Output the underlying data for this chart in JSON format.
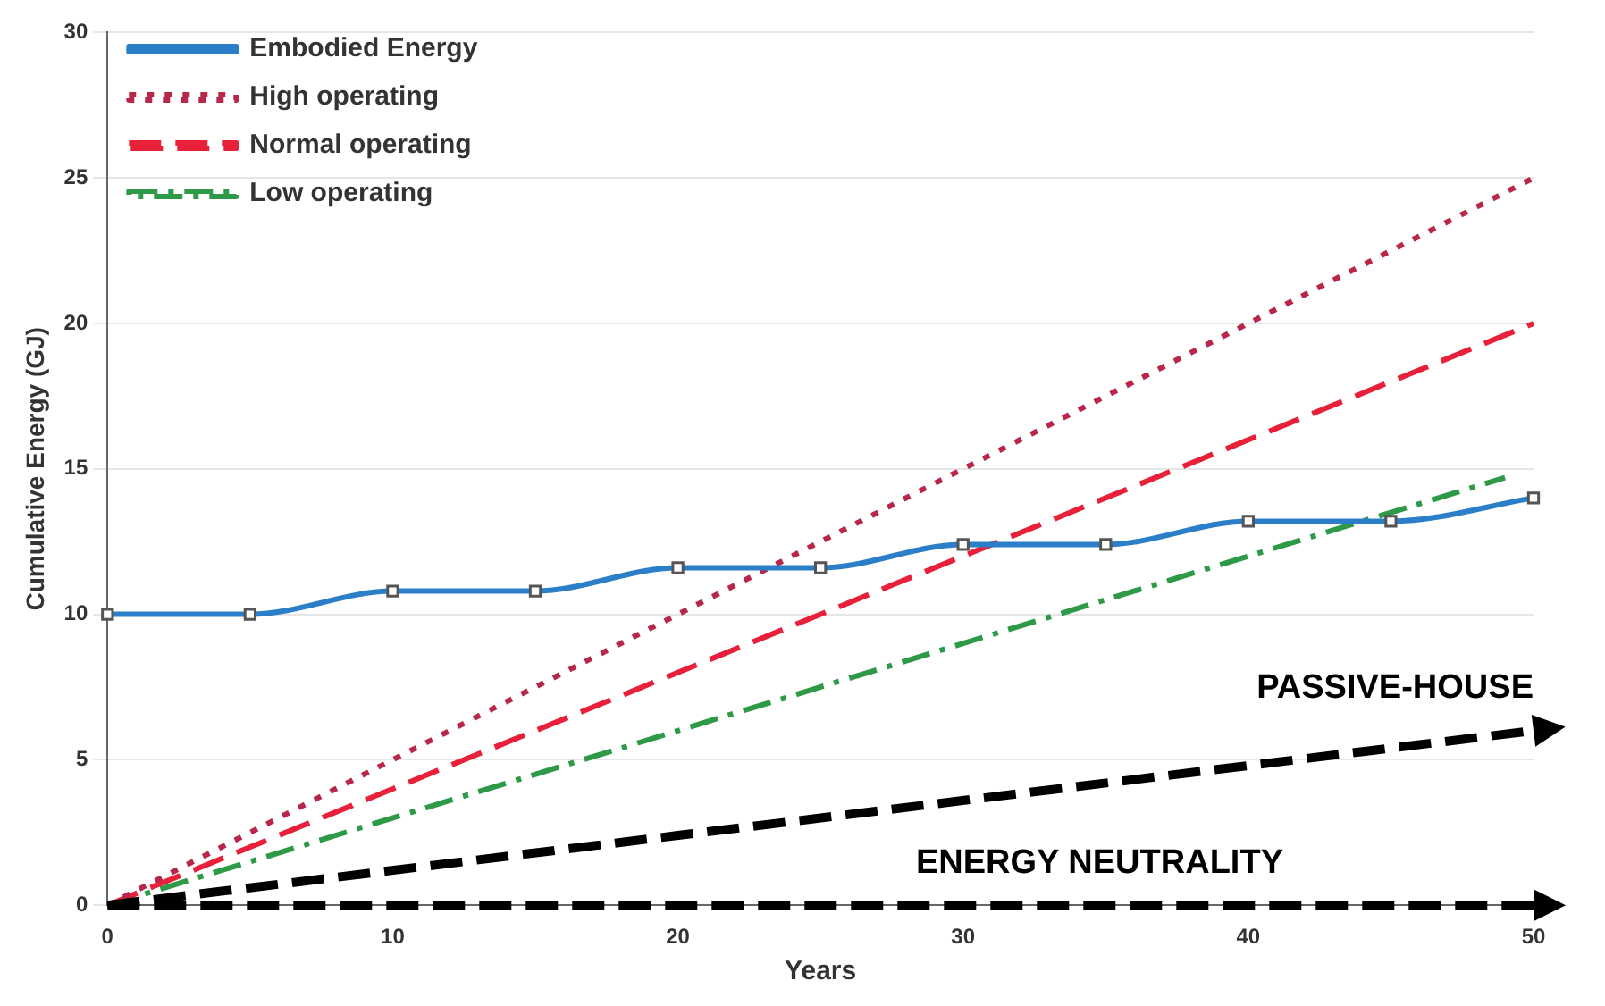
{
  "chart_data": {
    "type": "line",
    "xlabel": "Years",
    "ylabel": "Cumulative Energy (GJ)",
    "xlim": [
      0,
      50
    ],
    "ylim": [
      0,
      30
    ],
    "xticks": [
      0,
      10,
      20,
      30,
      40,
      50
    ],
    "yticks": [
      0,
      5,
      10,
      15,
      20,
      25,
      30
    ],
    "grid": "y",
    "legend": "top left",
    "series": [
      {
        "name": "Embodied Energy",
        "color": "#2b7fc9",
        "marker": "square",
        "line_style": "solid",
        "x": [
          0,
          5,
          10,
          15,
          20,
          25,
          30,
          35,
          40,
          45,
          50
        ],
        "values": [
          10,
          10,
          10.8,
          10.8,
          11.6,
          11.6,
          12.4,
          12.4,
          13.2,
          13.2,
          14
        ]
      },
      {
        "name": "High operating",
        "color": "#b8264a",
        "marker": "none",
        "line_style": "dotted",
        "x": [
          0,
          50
        ],
        "values": [
          0,
          25
        ]
      },
      {
        "name": "Normal operating",
        "color": "#e8203a",
        "marker": "none",
        "line_style": "dashed",
        "x": [
          0,
          50
        ],
        "values": [
          0,
          20
        ]
      },
      {
        "name": "Low operating",
        "color": "#2e9a48",
        "marker": "none",
        "line_style": "dashdot",
        "x": [
          0,
          49
        ],
        "values": [
          0,
          14.7
        ]
      }
    ],
    "annotations": [
      "PASSIVE-HOUSE",
      "ENERGY NEUTRALITY"
    ]
  }
}
